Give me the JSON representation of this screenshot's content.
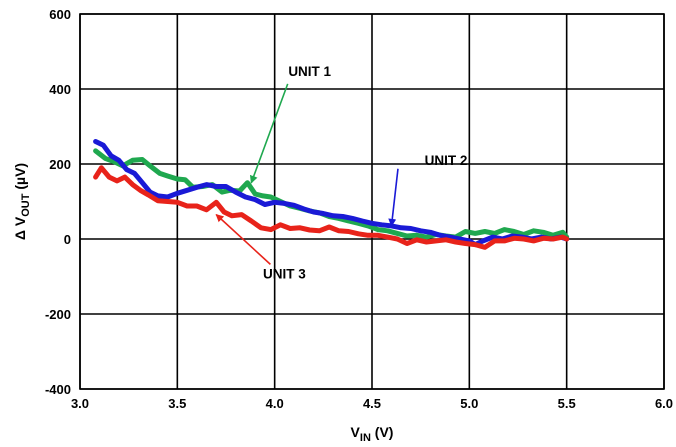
{
  "chart_data": {
    "type": "line",
    "xlabel": {
      "main": "V",
      "sub": "IN",
      "suffix": " (V)"
    },
    "ylabel": {
      "prefix": "Δ V",
      "sub": "OUT",
      "suffix": " (µV)"
    },
    "xlim": [
      3.0,
      6.0
    ],
    "ylim": [
      -400,
      600
    ],
    "x_ticks": [
      "3.0",
      "3.5",
      "4.0",
      "4.5",
      "5.0",
      "5.5",
      "6.0"
    ],
    "y_ticks": [
      "-400",
      "-200",
      "0",
      "200",
      "400",
      "600"
    ],
    "grid": true,
    "series": [
      {
        "name": "UNIT 1",
        "color": "#1fa84f",
        "points": [
          [
            3.08,
            235
          ],
          [
            3.13,
            215
          ],
          [
            3.18,
            205
          ],
          [
            3.22,
            195
          ],
          [
            3.27,
            210
          ],
          [
            3.32,
            212
          ],
          [
            3.36,
            195
          ],
          [
            3.41,
            175
          ],
          [
            3.45,
            168
          ],
          [
            3.5,
            160
          ],
          [
            3.54,
            158
          ],
          [
            3.58,
            138
          ],
          [
            3.63,
            140
          ],
          [
            3.68,
            145
          ],
          [
            3.73,
            125
          ],
          [
            3.77,
            130
          ],
          [
            3.82,
            128
          ],
          [
            3.86,
            150
          ],
          [
            3.9,
            120
          ],
          [
            3.94,
            115
          ],
          [
            3.98,
            112
          ],
          [
            4.03,
            100
          ],
          [
            4.08,
            88
          ],
          [
            4.13,
            82
          ],
          [
            4.18,
            75
          ],
          [
            4.23,
            70
          ],
          [
            4.28,
            60
          ],
          [
            4.33,
            55
          ],
          [
            4.38,
            48
          ],
          [
            4.43,
            42
          ],
          [
            4.48,
            35
          ],
          [
            4.53,
            25
          ],
          [
            4.58,
            22
          ],
          [
            4.63,
            15
          ],
          [
            4.68,
            8
          ],
          [
            4.73,
            10
          ],
          [
            4.78,
            5
          ],
          [
            4.83,
            12
          ],
          [
            4.88,
            8
          ],
          [
            4.93,
            5
          ],
          [
            4.98,
            20
          ],
          [
            5.03,
            15
          ],
          [
            5.08,
            20
          ],
          [
            5.13,
            15
          ],
          [
            5.18,
            25
          ],
          [
            5.23,
            20
          ],
          [
            5.28,
            12
          ],
          [
            5.33,
            22
          ],
          [
            5.38,
            18
          ],
          [
            5.43,
            10
          ],
          [
            5.48,
            18
          ],
          [
            5.5,
            5
          ]
        ]
      },
      {
        "name": "UNIT 2",
        "color": "#1a1ad6",
        "points": [
          [
            3.08,
            260
          ],
          [
            3.12,
            250
          ],
          [
            3.16,
            222
          ],
          [
            3.2,
            210
          ],
          [
            3.24,
            185
          ],
          [
            3.28,
            175
          ],
          [
            3.32,
            150
          ],
          [
            3.36,
            125
          ],
          [
            3.4,
            115
          ],
          [
            3.45,
            112
          ],
          [
            3.5,
            122
          ],
          [
            3.55,
            130
          ],
          [
            3.6,
            138
          ],
          [
            3.65,
            145
          ],
          [
            3.7,
            140
          ],
          [
            3.75,
            140
          ],
          [
            3.8,
            125
          ],
          [
            3.85,
            112
          ],
          [
            3.9,
            105
          ],
          [
            3.95,
            92
          ],
          [
            4.0,
            98
          ],
          [
            4.05,
            95
          ],
          [
            4.1,
            90
          ],
          [
            4.15,
            80
          ],
          [
            4.2,
            72
          ],
          [
            4.25,
            68
          ],
          [
            4.3,
            62
          ],
          [
            4.35,
            60
          ],
          [
            4.4,
            55
          ],
          [
            4.45,
            48
          ],
          [
            4.5,
            42
          ],
          [
            4.55,
            38
          ],
          [
            4.6,
            35
          ],
          [
            4.65,
            30
          ],
          [
            4.7,
            28
          ],
          [
            4.75,
            22
          ],
          [
            4.8,
            18
          ],
          [
            4.85,
            10
          ],
          [
            4.9,
            5
          ],
          [
            4.95,
            0
          ],
          [
            5.0,
            -5
          ],
          [
            5.03,
            -15
          ],
          [
            5.07,
            -5
          ],
          [
            5.12,
            5
          ],
          [
            5.17,
            0
          ],
          [
            5.22,
            8
          ],
          [
            5.27,
            5
          ],
          [
            5.32,
            0
          ],
          [
            5.37,
            5
          ],
          [
            5.42,
            0
          ],
          [
            5.47,
            5
          ],
          [
            5.5,
            0
          ]
        ]
      },
      {
        "name": "UNIT 3",
        "color": "#e8231a",
        "points": [
          [
            3.08,
            165
          ],
          [
            3.11,
            190
          ],
          [
            3.15,
            165
          ],
          [
            3.19,
            155
          ],
          [
            3.23,
            165
          ],
          [
            3.27,
            145
          ],
          [
            3.31,
            130
          ],
          [
            3.35,
            118
          ],
          [
            3.4,
            102
          ],
          [
            3.45,
            100
          ],
          [
            3.5,
            98
          ],
          [
            3.55,
            88
          ],
          [
            3.6,
            88
          ],
          [
            3.65,
            78
          ],
          [
            3.7,
            98
          ],
          [
            3.74,
            72
          ],
          [
            3.78,
            62
          ],
          [
            3.83,
            65
          ],
          [
            3.88,
            48
          ],
          [
            3.93,
            30
          ],
          [
            3.98,
            25
          ],
          [
            4.03,
            38
          ],
          [
            4.08,
            28
          ],
          [
            4.13,
            30
          ],
          [
            4.18,
            24
          ],
          [
            4.23,
            22
          ],
          [
            4.28,
            32
          ],
          [
            4.33,
            22
          ],
          [
            4.38,
            20
          ],
          [
            4.43,
            14
          ],
          [
            4.48,
            10
          ],
          [
            4.53,
            10
          ],
          [
            4.58,
            5
          ],
          [
            4.63,
            0
          ],
          [
            4.68,
            -12
          ],
          [
            4.73,
            -2
          ],
          [
            4.78,
            -8
          ],
          [
            4.83,
            -5
          ],
          [
            4.88,
            -2
          ],
          [
            4.93,
            -8
          ],
          [
            4.98,
            -12
          ],
          [
            5.03,
            -15
          ],
          [
            5.08,
            -22
          ],
          [
            5.13,
            -5
          ],
          [
            5.18,
            -5
          ],
          [
            5.23,
            2
          ],
          [
            5.28,
            0
          ],
          [
            5.33,
            -5
          ],
          [
            5.38,
            2
          ],
          [
            5.43,
            0
          ],
          [
            5.48,
            5
          ],
          [
            5.5,
            0
          ]
        ]
      }
    ],
    "annotations": [
      {
        "label": "UNIT 1",
        "series": 0
      },
      {
        "label": "UNIT 2",
        "series": 1
      },
      {
        "label": "UNIT 3",
        "series": 2
      }
    ]
  }
}
